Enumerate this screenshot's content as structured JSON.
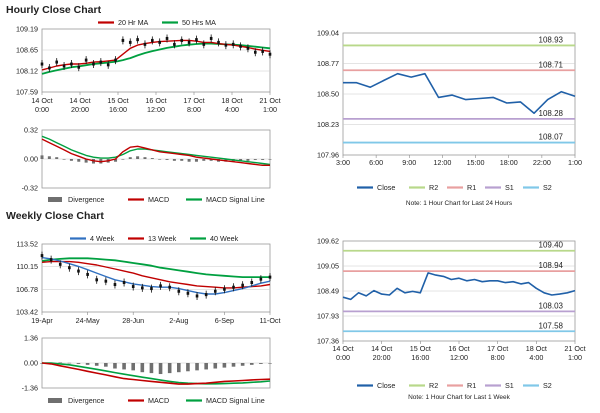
{
  "sections": {
    "hourly_title": "Hourly Close Chart",
    "weekly_title": "Weekly Close Chart"
  },
  "colors": {
    "ma_short": "#c00000",
    "ma_long": "#00a040",
    "close_line": "#2060a8",
    "r2": "#b8d88a",
    "r1": "#e8a0a0",
    "s1": "#b8a0d0",
    "s2": "#80c8e8",
    "divergence": "#6f6f6f",
    "macd": "#c00000",
    "signal": "#00a040",
    "week4": "#3070c0",
    "grid": "#c8c8c8"
  },
  "chart_data": [
    {
      "id": "hourly_price",
      "type": "line",
      "ylim": [
        107.59,
        109.19
      ],
      "yticks": [
        "109.19",
        "108.65",
        "108.12",
        "107.59"
      ],
      "xticks": [
        {
          "l1": "14 Oct",
          "l2": "0:00"
        },
        {
          "l1": "14 Oct",
          "l2": "20:00"
        },
        {
          "l1": "15 Oct",
          "l2": "16:00"
        },
        {
          "l1": "16 Oct",
          "l2": "12:00"
        },
        {
          "l1": "17 Oct",
          "l2": "8:00"
        },
        {
          "l1": "18 Oct",
          "l2": "4:00"
        },
        {
          "l1": "21 Oct",
          "l2": "1:00"
        }
      ],
      "legend": [
        "20 Hr MA",
        "50 Hrs MA"
      ],
      "series": [
        {
          "name": "price",
          "values": [
            108.3,
            108.2,
            108.35,
            108.25,
            108.3,
            108.22,
            108.4,
            108.3,
            108.35,
            108.28,
            108.4,
            108.9,
            108.85,
            108.92,
            108.8,
            108.9,
            108.85,
            108.95,
            108.8,
            108.9,
            108.85,
            108.92,
            108.8,
            108.95,
            108.85,
            108.78,
            108.8,
            108.75,
            108.7,
            108.6,
            108.62,
            108.55
          ]
        },
        {
          "name": "20 Hr MA",
          "values": [
            108.15,
            108.2,
            108.25,
            108.28,
            108.3,
            108.3,
            108.32,
            108.35,
            108.36,
            108.38,
            108.4,
            108.55,
            108.7,
            108.78,
            108.82,
            108.85,
            108.87,
            108.88,
            108.89,
            108.9,
            108.9,
            108.88,
            108.85,
            108.85,
            108.82,
            108.8,
            108.78,
            108.75,
            108.72,
            108.68,
            108.65,
            108.62
          ]
        },
        {
          "name": "50 Hrs MA",
          "values": [
            108.05,
            108.1,
            108.14,
            108.18,
            108.22,
            108.24,
            108.27,
            108.3,
            108.32,
            108.34,
            108.36,
            108.4,
            108.45,
            108.52,
            108.58,
            108.63,
            108.67,
            108.71,
            108.74,
            108.77,
            108.79,
            108.81,
            108.82,
            108.82,
            108.81,
            108.8,
            108.79,
            108.78,
            108.76,
            108.74,
            108.72,
            108.7
          ]
        }
      ]
    },
    {
      "id": "hourly_macd",
      "type": "bar",
      "ylim": [
        -0.32,
        0.32
      ],
      "yticks": [
        "0.32",
        "0.00",
        "-0.32"
      ],
      "legend": [
        "Divergence",
        "MACD",
        "MACD Signal Line"
      ],
      "series": [
        {
          "name": "Divergence",
          "values": [
            0.04,
            0.03,
            0.02,
            0.0,
            -0.02,
            -0.03,
            -0.04,
            -0.05,
            -0.05,
            -0.04,
            -0.03,
            0.0,
            0.02,
            0.03,
            0.02,
            0.01,
            0.0,
            -0.01,
            -0.02,
            -0.02,
            -0.03,
            -0.03,
            -0.02,
            -0.02,
            -0.03,
            -0.03,
            -0.03,
            -0.02,
            -0.02,
            -0.01,
            -0.01,
            0.0
          ]
        },
        {
          "name": "MACD",
          "values": [
            0.22,
            0.18,
            0.14,
            0.1,
            0.06,
            0.03,
            0.0,
            -0.02,
            -0.03,
            -0.02,
            0.0,
            0.08,
            0.13,
            0.14,
            0.12,
            0.1,
            0.08,
            0.07,
            0.06,
            0.05,
            0.04,
            0.02,
            0.01,
            0.0,
            -0.01,
            -0.02,
            -0.03,
            -0.04,
            -0.05,
            -0.06,
            -0.07,
            -0.07
          ]
        },
        {
          "name": "MACD Signal Line",
          "values": [
            0.25,
            0.22,
            0.18,
            0.14,
            0.1,
            0.07,
            0.04,
            0.02,
            0.01,
            0.01,
            0.02,
            0.05,
            0.09,
            0.11,
            0.11,
            0.1,
            0.09,
            0.08,
            0.07,
            0.06,
            0.05,
            0.04,
            0.03,
            0.02,
            0.01,
            0.0,
            -0.01,
            -0.02,
            -0.03,
            -0.04,
            -0.05,
            -0.06
          ]
        }
      ]
    },
    {
      "id": "hourly_levels",
      "type": "line",
      "ylim": [
        107.96,
        109.04
      ],
      "yticks": [
        "109.04",
        "108.77",
        "108.50",
        "108.23",
        "107.96"
      ],
      "xticks": [
        "3:00",
        "6:00",
        "9:00",
        "12:00",
        "15:00",
        "18:00",
        "22:00",
        "1:00"
      ],
      "levels": [
        {
          "name": "R2",
          "value": 108.93,
          "label": "108.93"
        },
        {
          "name": "R1",
          "value": 108.71,
          "label": "108.71"
        },
        {
          "name": "S1",
          "value": 108.28,
          "label": "108.28"
        },
        {
          "name": "S2",
          "value": 108.07,
          "label": "108.07"
        }
      ],
      "series": [
        {
          "name": "Close",
          "values": [
            108.6,
            108.6,
            108.56,
            108.62,
            108.68,
            108.65,
            108.68,
            108.47,
            108.49,
            108.45,
            108.46,
            108.47,
            108.42,
            108.43,
            108.33,
            108.45,
            108.52,
            108.48
          ]
        }
      ],
      "legend": [
        "Close",
        "R2",
        "R1",
        "S1",
        "S2"
      ],
      "note": "Note: 1 Hour Chart for Last 24 Hours"
    },
    {
      "id": "weekly_price",
      "type": "line",
      "ylim": [
        103.42,
        113.52
      ],
      "yticks": [
        "113.52",
        "110.15",
        "106.78",
        "103.42"
      ],
      "xticks": [
        "19-Apr",
        "24-May",
        "28-Jun",
        "2-Aug",
        "6-Sep",
        "11-Oct"
      ],
      "legend": [
        "4 Week",
        "13 Week",
        "40 Week"
      ],
      "series": [
        {
          "name": "price",
          "values": [
            111.8,
            111.2,
            110.5,
            110.0,
            109.5,
            109.0,
            108.2,
            108.0,
            107.5,
            107.8,
            107.2,
            107.0,
            106.9,
            107.3,
            107.1,
            106.5,
            106.2,
            105.8,
            106.0,
            106.5,
            106.8,
            107.1,
            107.4,
            107.8,
            108.3,
            108.6
          ]
        },
        {
          "name": "4 Week",
          "values": [
            111.5,
            111.3,
            111.0,
            110.6,
            110.2,
            109.7,
            109.2,
            108.7,
            108.2,
            107.9,
            107.6,
            107.4,
            107.2,
            107.1,
            107.1,
            106.9,
            106.6,
            106.3,
            106.1,
            106.1,
            106.3,
            106.6,
            106.9,
            107.3,
            107.7,
            108.0
          ]
        },
        {
          "name": "13 Week",
          "values": [
            110.8,
            110.9,
            110.9,
            110.9,
            110.8,
            110.6,
            110.4,
            110.1,
            109.8,
            109.5,
            109.2,
            108.8,
            108.5,
            108.2,
            107.9,
            107.7,
            107.5,
            107.3,
            107.2,
            107.1,
            107.0,
            107.0,
            107.1,
            107.2,
            107.3,
            107.5
          ]
        },
        {
          "name": "40 Week",
          "values": [
            111.0,
            111.2,
            111.3,
            111.4,
            111.4,
            111.4,
            111.3,
            111.2,
            111.1,
            110.9,
            110.7,
            110.5,
            110.3,
            110.0,
            109.8,
            109.6,
            109.4,
            109.2,
            109.0,
            108.9,
            108.8,
            108.7,
            108.6,
            108.6,
            108.6,
            108.6
          ]
        }
      ]
    },
    {
      "id": "weekly_macd",
      "type": "bar",
      "ylim": [
        -1.36,
        1.36
      ],
      "yticks": [
        "1.36",
        "0.00",
        "-1.36"
      ],
      "legend": [
        "Divergence",
        "MACD",
        "MACD Signal Line"
      ],
      "series": [
        {
          "name": "Divergence",
          "values": [
            0.0,
            0.02,
            0.03,
            0.01,
            -0.05,
            -0.1,
            -0.15,
            -0.2,
            -0.3,
            -0.35,
            -0.4,
            -0.5,
            -0.55,
            -0.6,
            -0.55,
            -0.5,
            -0.45,
            -0.4,
            -0.35,
            -0.3,
            -0.25,
            -0.2,
            -0.15,
            -0.1,
            -0.05,
            -0.02
          ]
        },
        {
          "name": "MACD",
          "values": [
            0.0,
            -0.05,
            -0.15,
            -0.25,
            -0.35,
            -0.45,
            -0.55,
            -0.65,
            -0.75,
            -0.85,
            -0.9,
            -0.95,
            -1.0,
            -1.05,
            -1.1,
            -1.15,
            -1.15,
            -1.12,
            -1.1,
            -1.05,
            -1.0,
            -0.98,
            -0.95,
            -0.92,
            -0.9,
            -0.88
          ]
        },
        {
          "name": "MACD Signal Line",
          "values": [
            0.0,
            0.0,
            -0.05,
            -0.1,
            -0.18,
            -0.26,
            -0.34,
            -0.43,
            -0.52,
            -0.61,
            -0.69,
            -0.77,
            -0.85,
            -0.93,
            -1.0,
            -1.06,
            -1.1,
            -1.12,
            -1.13,
            -1.13,
            -1.12,
            -1.1,
            -1.08,
            -1.05,
            -1.02,
            -0.98
          ]
        }
      ]
    },
    {
      "id": "weekly_levels",
      "type": "line",
      "ylim": [
        107.36,
        109.62
      ],
      "yticks": [
        "109.62",
        "109.05",
        "108.49",
        "107.93",
        "107.36"
      ],
      "xticks": [
        {
          "l1": "14 Oct",
          "l2": "0:00"
        },
        {
          "l1": "14 Oct",
          "l2": "20:00"
        },
        {
          "l1": "15 Oct",
          "l2": "16:00"
        },
        {
          "l1": "16 Oct",
          "l2": "12:00"
        },
        {
          "l1": "17 Oct",
          "l2": "8:00"
        },
        {
          "l1": "18 Oct",
          "l2": "4:00"
        },
        {
          "l1": "21 Oct",
          "l2": "1:00"
        }
      ],
      "levels": [
        {
          "name": "R2",
          "value": 109.4,
          "label": "109.40"
        },
        {
          "name": "R1",
          "value": 108.94,
          "label": "108.94"
        },
        {
          "name": "S1",
          "value": 108.03,
          "label": "108.03"
        },
        {
          "name": "S2",
          "value": 107.58,
          "label": "107.58"
        }
      ],
      "series": [
        {
          "name": "Close",
          "values": [
            108.35,
            108.3,
            108.45,
            108.38,
            108.5,
            108.42,
            108.4,
            108.55,
            108.45,
            108.48,
            108.45,
            108.9,
            108.85,
            108.82,
            108.75,
            108.78,
            108.72,
            108.75,
            108.7,
            108.72,
            108.72,
            108.68,
            108.7,
            108.65,
            108.68,
            108.55,
            108.45,
            108.4,
            108.42,
            108.45,
            108.5
          ]
        }
      ],
      "legend": [
        "Close",
        "R2",
        "R1",
        "S1",
        "S2"
      ],
      "note": "Note: 1 Hour Chart for Last 1 Week"
    }
  ]
}
